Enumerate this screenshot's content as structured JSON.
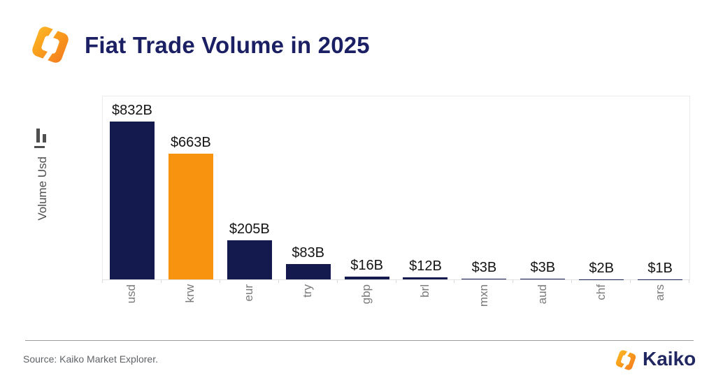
{
  "header": {
    "title": "Fiat Trade Volume in 2025"
  },
  "chart_data": {
    "type": "bar",
    "title": "Fiat Trade Volume in 2025",
    "xlabel": "",
    "ylabel": "Volume Usd",
    "unit": "USD billions",
    "categories": [
      "usd",
      "krw",
      "eur",
      "try",
      "gbp",
      "brl",
      "mxn",
      "aud",
      "chf",
      "ars"
    ],
    "values": [
      832,
      663,
      205,
      83,
      16,
      12,
      3,
      3,
      2,
      1
    ],
    "value_labels": [
      "$832B",
      "$663B",
      "$205B",
      "$83B",
      "$16B",
      "$12B",
      "$3B",
      "$3B",
      "$2B",
      "$1B"
    ],
    "bar_colors": [
      "#141a4e",
      "#f7930e",
      "#141a4e",
      "#141a4e",
      "#141a4e",
      "#141a4e",
      "#141a4e",
      "#141a4e",
      "#141a4e",
      "#141a4e"
    ],
    "ylim": [
      0,
      960
    ],
    "grid": false,
    "legend": "none",
    "x_tick_rotation": -90
  },
  "footer": {
    "source": "Source: Kaiko Market Explorer.",
    "brand": "Kaiko"
  },
  "colors": {
    "navy": "#141a4e",
    "orange": "#f7930e",
    "title_navy": "#1b1f63",
    "axis_text_gray": "#7a7a7a",
    "value_label": "#141414"
  }
}
